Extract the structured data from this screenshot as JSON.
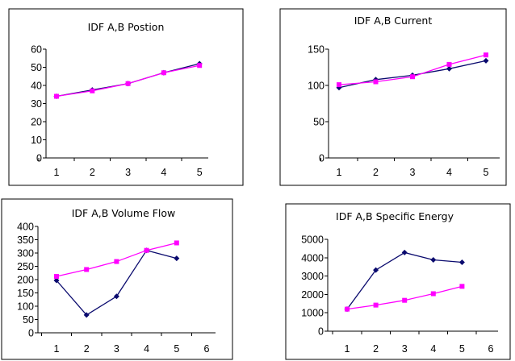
{
  "chart_data": [
    {
      "type": "line",
      "title": "IDF A,B Postion",
      "xlabel": "",
      "ylabel": "",
      "x": [
        1,
        2,
        3,
        4,
        5
      ],
      "x_ticks": [
        "1",
        "2",
        "3",
        "4",
        "5"
      ],
      "ylim": [
        0,
        60
      ],
      "y_ticks": [
        "0",
        "10",
        "20",
        "30",
        "40",
        "50",
        "60"
      ],
      "grid": false,
      "legend": "none",
      "series": [
        {
          "color": "#0a0a6e",
          "marker": "diamond",
          "values": [
            34,
            37.5,
            41,
            47,
            52
          ]
        },
        {
          "color": "#ff00ff",
          "marker": "square",
          "values": [
            34,
            37,
            41,
            47,
            51
          ]
        }
      ]
    },
    {
      "type": "line",
      "title": "IDF A,B Current",
      "xlabel": "",
      "ylabel": "",
      "x": [
        1,
        2,
        3,
        4,
        5
      ],
      "x_ticks": [
        "1",
        "2",
        "3",
        "4",
        "5"
      ],
      "ylim": [
        0,
        150
      ],
      "y_ticks": [
        "0",
        "50",
        "100",
        "150"
      ],
      "grid": false,
      "legend": "none",
      "series": [
        {
          "color": "#0a0a6e",
          "marker": "diamond",
          "values": [
            97,
            108,
            114,
            123,
            134
          ]
        },
        {
          "color": "#ff00ff",
          "marker": "square",
          "values": [
            101,
            105,
            112,
            129,
            142
          ]
        }
      ]
    },
    {
      "type": "line",
      "title": "IDF A,B Volume Flow",
      "xlabel": "",
      "ylabel": "",
      "x": [
        1,
        2,
        3,
        4,
        5
      ],
      "x_ticks": [
        "1",
        "2",
        "3",
        "4",
        "5",
        "6"
      ],
      "ylim": [
        0,
        400
      ],
      "y_ticks": [
        "0",
        "50",
        "100",
        "150",
        "200",
        "250",
        "300",
        "350",
        "400"
      ],
      "grid": false,
      "legend": "none",
      "series": [
        {
          "color": "#0a0a6e",
          "marker": "diamond",
          "values": [
            197,
            67,
            137,
            310,
            280
          ]
        },
        {
          "color": "#ff00ff",
          "marker": "square",
          "values": [
            212,
            238,
            268,
            310,
            338
          ]
        }
      ]
    },
    {
      "type": "line",
      "title": "IDF A,B Specific Energy",
      "xlabel": "",
      "ylabel": "",
      "x": [
        1,
        2,
        3,
        4,
        5
      ],
      "x_ticks": [
        "1",
        "2",
        "3",
        "4",
        "5",
        "6"
      ],
      "ylim": [
        0,
        5000
      ],
      "y_ticks": [
        "0",
        "1000",
        "2000",
        "3000",
        "4000",
        "5000"
      ],
      "grid": false,
      "legend": "none",
      "series": [
        {
          "color": "#0a0a6e",
          "marker": "diamond",
          "values": [
            1200,
            3330,
            4280,
            3880,
            3750
          ]
        },
        {
          "color": "#ff00ff",
          "marker": "square",
          "values": [
            1200,
            1420,
            1680,
            2040,
            2440
          ]
        }
      ]
    }
  ]
}
